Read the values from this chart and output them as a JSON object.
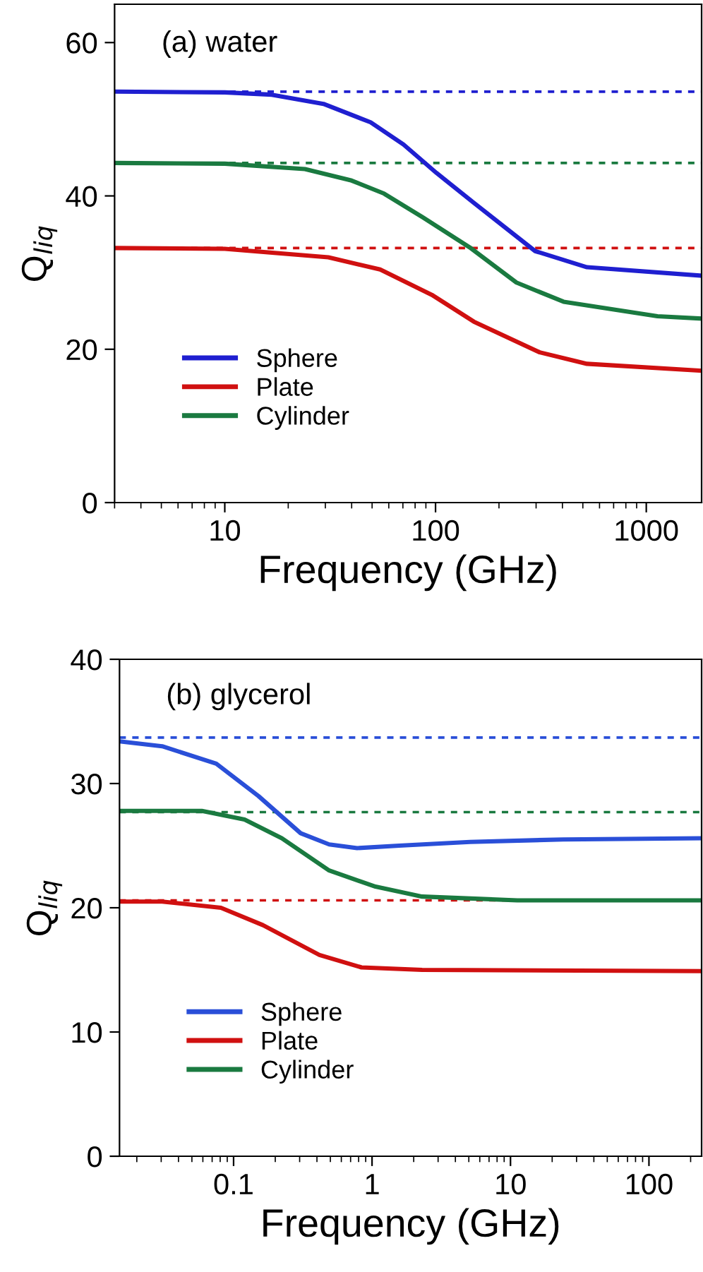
{
  "chart_data": [
    {
      "type": "line",
      "title": "(a) water",
      "xlabel": "Frequency (GHz)",
      "ylabel": "Q$_{liq}$",
      "log": "x",
      "xlim": [
        3,
        1830
      ],
      "xticks": [
        10,
        100,
        1000
      ],
      "ylim": [
        0,
        65
      ],
      "yticks": [
        0,
        20,
        40,
        60
      ],
      "legend": "bottom left",
      "grid": false,
      "line_style": "solid",
      "marker": "none",
      "series": [
        {
          "name": "Sphere",
          "color": "#1f1fd0",
          "x": [
            3,
            10,
            16.7,
            29.4,
            49.2,
            70.5,
            101,
            152,
            297,
            523,
            1830
          ],
          "values": [
            53.6,
            53.5,
            53.2,
            52.0,
            49.6,
            46.7,
            43.0,
            39.1,
            32.8,
            30.7,
            29.6
          ]
        },
        {
          "name": "Plate",
          "color": "#d01010",
          "x": [
            3,
            10,
            31,
            54.6,
            96,
            152,
            312,
            523,
            1830
          ],
          "values": [
            33.2,
            33.1,
            32.0,
            30.4,
            27.1,
            23.6,
            19.6,
            18.1,
            17.2
          ]
        },
        {
          "name": "Cylinder",
          "color": "#1a7a40",
          "x": [
            3,
            10,
            24,
            40,
            57,
            87,
            145,
            242,
            405,
            1130,
            1830
          ],
          "values": [
            44.3,
            44.2,
            43.5,
            42.0,
            40.3,
            37.2,
            33.3,
            28.7,
            26.2,
            24.3,
            24.0
          ]
        }
      ],
      "ref_lines": [
        {
          "axis": "y",
          "value": 53.6,
          "color": "#1f1fd0",
          "line_style": "dashed"
        },
        {
          "axis": "y",
          "value": 44.3,
          "color": "#1a7a40",
          "line_style": "dashed"
        },
        {
          "axis": "y",
          "value": 33.2,
          "color": "#d01010",
          "line_style": "dashed"
        }
      ]
    },
    {
      "type": "line",
      "title": "(b) glycerol",
      "xlabel": "Frequency (GHz)",
      "ylabel": "Q$_{liq}$",
      "log": "x",
      "xlim": [
        0.015,
        240
      ],
      "xticks": [
        0.1,
        1,
        10,
        100
      ],
      "ylim": [
        0,
        40
      ],
      "yticks": [
        0,
        10,
        20,
        30,
        40
      ],
      "legend": "bottom left",
      "grid": false,
      "line_style": "solid",
      "marker": "none",
      "series": [
        {
          "name": "Sphere",
          "color": "#2a4fd8",
          "x": [
            0.015,
            0.0305,
            0.075,
            0.151,
            0.305,
            0.49,
            0.78,
            1.57,
            5.1,
            24,
            240
          ],
          "values": [
            33.4,
            33.0,
            31.6,
            29.0,
            26.0,
            25.1,
            24.8,
            25.0,
            25.3,
            25.5,
            25.6
          ]
        },
        {
          "name": "Plate",
          "color": "#d01010",
          "x": [
            0.015,
            0.0305,
            0.081,
            0.163,
            0.417,
            0.84,
            2.3,
            240
          ],
          "values": [
            20.5,
            20.5,
            20.0,
            18.6,
            16.2,
            15.2,
            15.0,
            14.9
          ]
        },
        {
          "name": "Cylinder",
          "color": "#1a7a40",
          "x": [
            0.015,
            0.059,
            0.12,
            0.223,
            0.49,
            1.06,
            2.3,
            11.2,
            240
          ],
          "values": [
            27.8,
            27.8,
            27.1,
            25.6,
            23.0,
            21.7,
            20.9,
            20.6,
            20.6
          ]
        }
      ],
      "ref_lines": [
        {
          "axis": "y",
          "value": 33.7,
          "color": "#2a4fd8",
          "line_style": "dashed"
        },
        {
          "axis": "y",
          "value": 27.7,
          "color": "#1a7a40",
          "line_style": "dashed"
        },
        {
          "axis": "y",
          "value": 20.6,
          "color": "#d01010",
          "line_style": "dashed"
        }
      ]
    }
  ]
}
